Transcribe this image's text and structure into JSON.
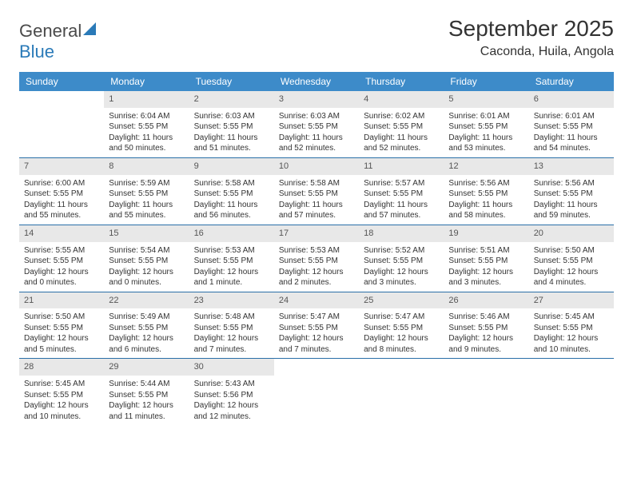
{
  "logo": {
    "text1": "General",
    "text2": "Blue"
  },
  "title": "September 2025",
  "location": "Caconda, Huila, Angola",
  "colors": {
    "header_bg": "#3d8bc9",
    "header_text": "#ffffff",
    "daynum_bg": "#e8e8e8",
    "week_border": "#2a6fa8",
    "logo_gray": "#4a4a4a",
    "logo_blue": "#2a7ab8"
  },
  "weekdays": [
    "Sunday",
    "Monday",
    "Tuesday",
    "Wednesday",
    "Thursday",
    "Friday",
    "Saturday"
  ],
  "weeks": [
    [
      {
        "num": "",
        "sunrise": "",
        "sunset": "",
        "daylight": ""
      },
      {
        "num": "1",
        "sunrise": "Sunrise: 6:04 AM",
        "sunset": "Sunset: 5:55 PM",
        "daylight": "Daylight: 11 hours and 50 minutes."
      },
      {
        "num": "2",
        "sunrise": "Sunrise: 6:03 AM",
        "sunset": "Sunset: 5:55 PM",
        "daylight": "Daylight: 11 hours and 51 minutes."
      },
      {
        "num": "3",
        "sunrise": "Sunrise: 6:03 AM",
        "sunset": "Sunset: 5:55 PM",
        "daylight": "Daylight: 11 hours and 52 minutes."
      },
      {
        "num": "4",
        "sunrise": "Sunrise: 6:02 AM",
        "sunset": "Sunset: 5:55 PM",
        "daylight": "Daylight: 11 hours and 52 minutes."
      },
      {
        "num": "5",
        "sunrise": "Sunrise: 6:01 AM",
        "sunset": "Sunset: 5:55 PM",
        "daylight": "Daylight: 11 hours and 53 minutes."
      },
      {
        "num": "6",
        "sunrise": "Sunrise: 6:01 AM",
        "sunset": "Sunset: 5:55 PM",
        "daylight": "Daylight: 11 hours and 54 minutes."
      }
    ],
    [
      {
        "num": "7",
        "sunrise": "Sunrise: 6:00 AM",
        "sunset": "Sunset: 5:55 PM",
        "daylight": "Daylight: 11 hours and 55 minutes."
      },
      {
        "num": "8",
        "sunrise": "Sunrise: 5:59 AM",
        "sunset": "Sunset: 5:55 PM",
        "daylight": "Daylight: 11 hours and 55 minutes."
      },
      {
        "num": "9",
        "sunrise": "Sunrise: 5:58 AM",
        "sunset": "Sunset: 5:55 PM",
        "daylight": "Daylight: 11 hours and 56 minutes."
      },
      {
        "num": "10",
        "sunrise": "Sunrise: 5:58 AM",
        "sunset": "Sunset: 5:55 PM",
        "daylight": "Daylight: 11 hours and 57 minutes."
      },
      {
        "num": "11",
        "sunrise": "Sunrise: 5:57 AM",
        "sunset": "Sunset: 5:55 PM",
        "daylight": "Daylight: 11 hours and 57 minutes."
      },
      {
        "num": "12",
        "sunrise": "Sunrise: 5:56 AM",
        "sunset": "Sunset: 5:55 PM",
        "daylight": "Daylight: 11 hours and 58 minutes."
      },
      {
        "num": "13",
        "sunrise": "Sunrise: 5:56 AM",
        "sunset": "Sunset: 5:55 PM",
        "daylight": "Daylight: 11 hours and 59 minutes."
      }
    ],
    [
      {
        "num": "14",
        "sunrise": "Sunrise: 5:55 AM",
        "sunset": "Sunset: 5:55 PM",
        "daylight": "Daylight: 12 hours and 0 minutes."
      },
      {
        "num": "15",
        "sunrise": "Sunrise: 5:54 AM",
        "sunset": "Sunset: 5:55 PM",
        "daylight": "Daylight: 12 hours and 0 minutes."
      },
      {
        "num": "16",
        "sunrise": "Sunrise: 5:53 AM",
        "sunset": "Sunset: 5:55 PM",
        "daylight": "Daylight: 12 hours and 1 minute."
      },
      {
        "num": "17",
        "sunrise": "Sunrise: 5:53 AM",
        "sunset": "Sunset: 5:55 PM",
        "daylight": "Daylight: 12 hours and 2 minutes."
      },
      {
        "num": "18",
        "sunrise": "Sunrise: 5:52 AM",
        "sunset": "Sunset: 5:55 PM",
        "daylight": "Daylight: 12 hours and 3 minutes."
      },
      {
        "num": "19",
        "sunrise": "Sunrise: 5:51 AM",
        "sunset": "Sunset: 5:55 PM",
        "daylight": "Daylight: 12 hours and 3 minutes."
      },
      {
        "num": "20",
        "sunrise": "Sunrise: 5:50 AM",
        "sunset": "Sunset: 5:55 PM",
        "daylight": "Daylight: 12 hours and 4 minutes."
      }
    ],
    [
      {
        "num": "21",
        "sunrise": "Sunrise: 5:50 AM",
        "sunset": "Sunset: 5:55 PM",
        "daylight": "Daylight: 12 hours and 5 minutes."
      },
      {
        "num": "22",
        "sunrise": "Sunrise: 5:49 AM",
        "sunset": "Sunset: 5:55 PM",
        "daylight": "Daylight: 12 hours and 6 minutes."
      },
      {
        "num": "23",
        "sunrise": "Sunrise: 5:48 AM",
        "sunset": "Sunset: 5:55 PM",
        "daylight": "Daylight: 12 hours and 7 minutes."
      },
      {
        "num": "24",
        "sunrise": "Sunrise: 5:47 AM",
        "sunset": "Sunset: 5:55 PM",
        "daylight": "Daylight: 12 hours and 7 minutes."
      },
      {
        "num": "25",
        "sunrise": "Sunrise: 5:47 AM",
        "sunset": "Sunset: 5:55 PM",
        "daylight": "Daylight: 12 hours and 8 minutes."
      },
      {
        "num": "26",
        "sunrise": "Sunrise: 5:46 AM",
        "sunset": "Sunset: 5:55 PM",
        "daylight": "Daylight: 12 hours and 9 minutes."
      },
      {
        "num": "27",
        "sunrise": "Sunrise: 5:45 AM",
        "sunset": "Sunset: 5:55 PM",
        "daylight": "Daylight: 12 hours and 10 minutes."
      }
    ],
    [
      {
        "num": "28",
        "sunrise": "Sunrise: 5:45 AM",
        "sunset": "Sunset: 5:55 PM",
        "daylight": "Daylight: 12 hours and 10 minutes."
      },
      {
        "num": "29",
        "sunrise": "Sunrise: 5:44 AM",
        "sunset": "Sunset: 5:55 PM",
        "daylight": "Daylight: 12 hours and 11 minutes."
      },
      {
        "num": "30",
        "sunrise": "Sunrise: 5:43 AM",
        "sunset": "Sunset: 5:56 PM",
        "daylight": "Daylight: 12 hours and 12 minutes."
      },
      {
        "num": "",
        "sunrise": "",
        "sunset": "",
        "daylight": ""
      },
      {
        "num": "",
        "sunrise": "",
        "sunset": "",
        "daylight": ""
      },
      {
        "num": "",
        "sunrise": "",
        "sunset": "",
        "daylight": ""
      },
      {
        "num": "",
        "sunrise": "",
        "sunset": "",
        "daylight": ""
      }
    ]
  ]
}
